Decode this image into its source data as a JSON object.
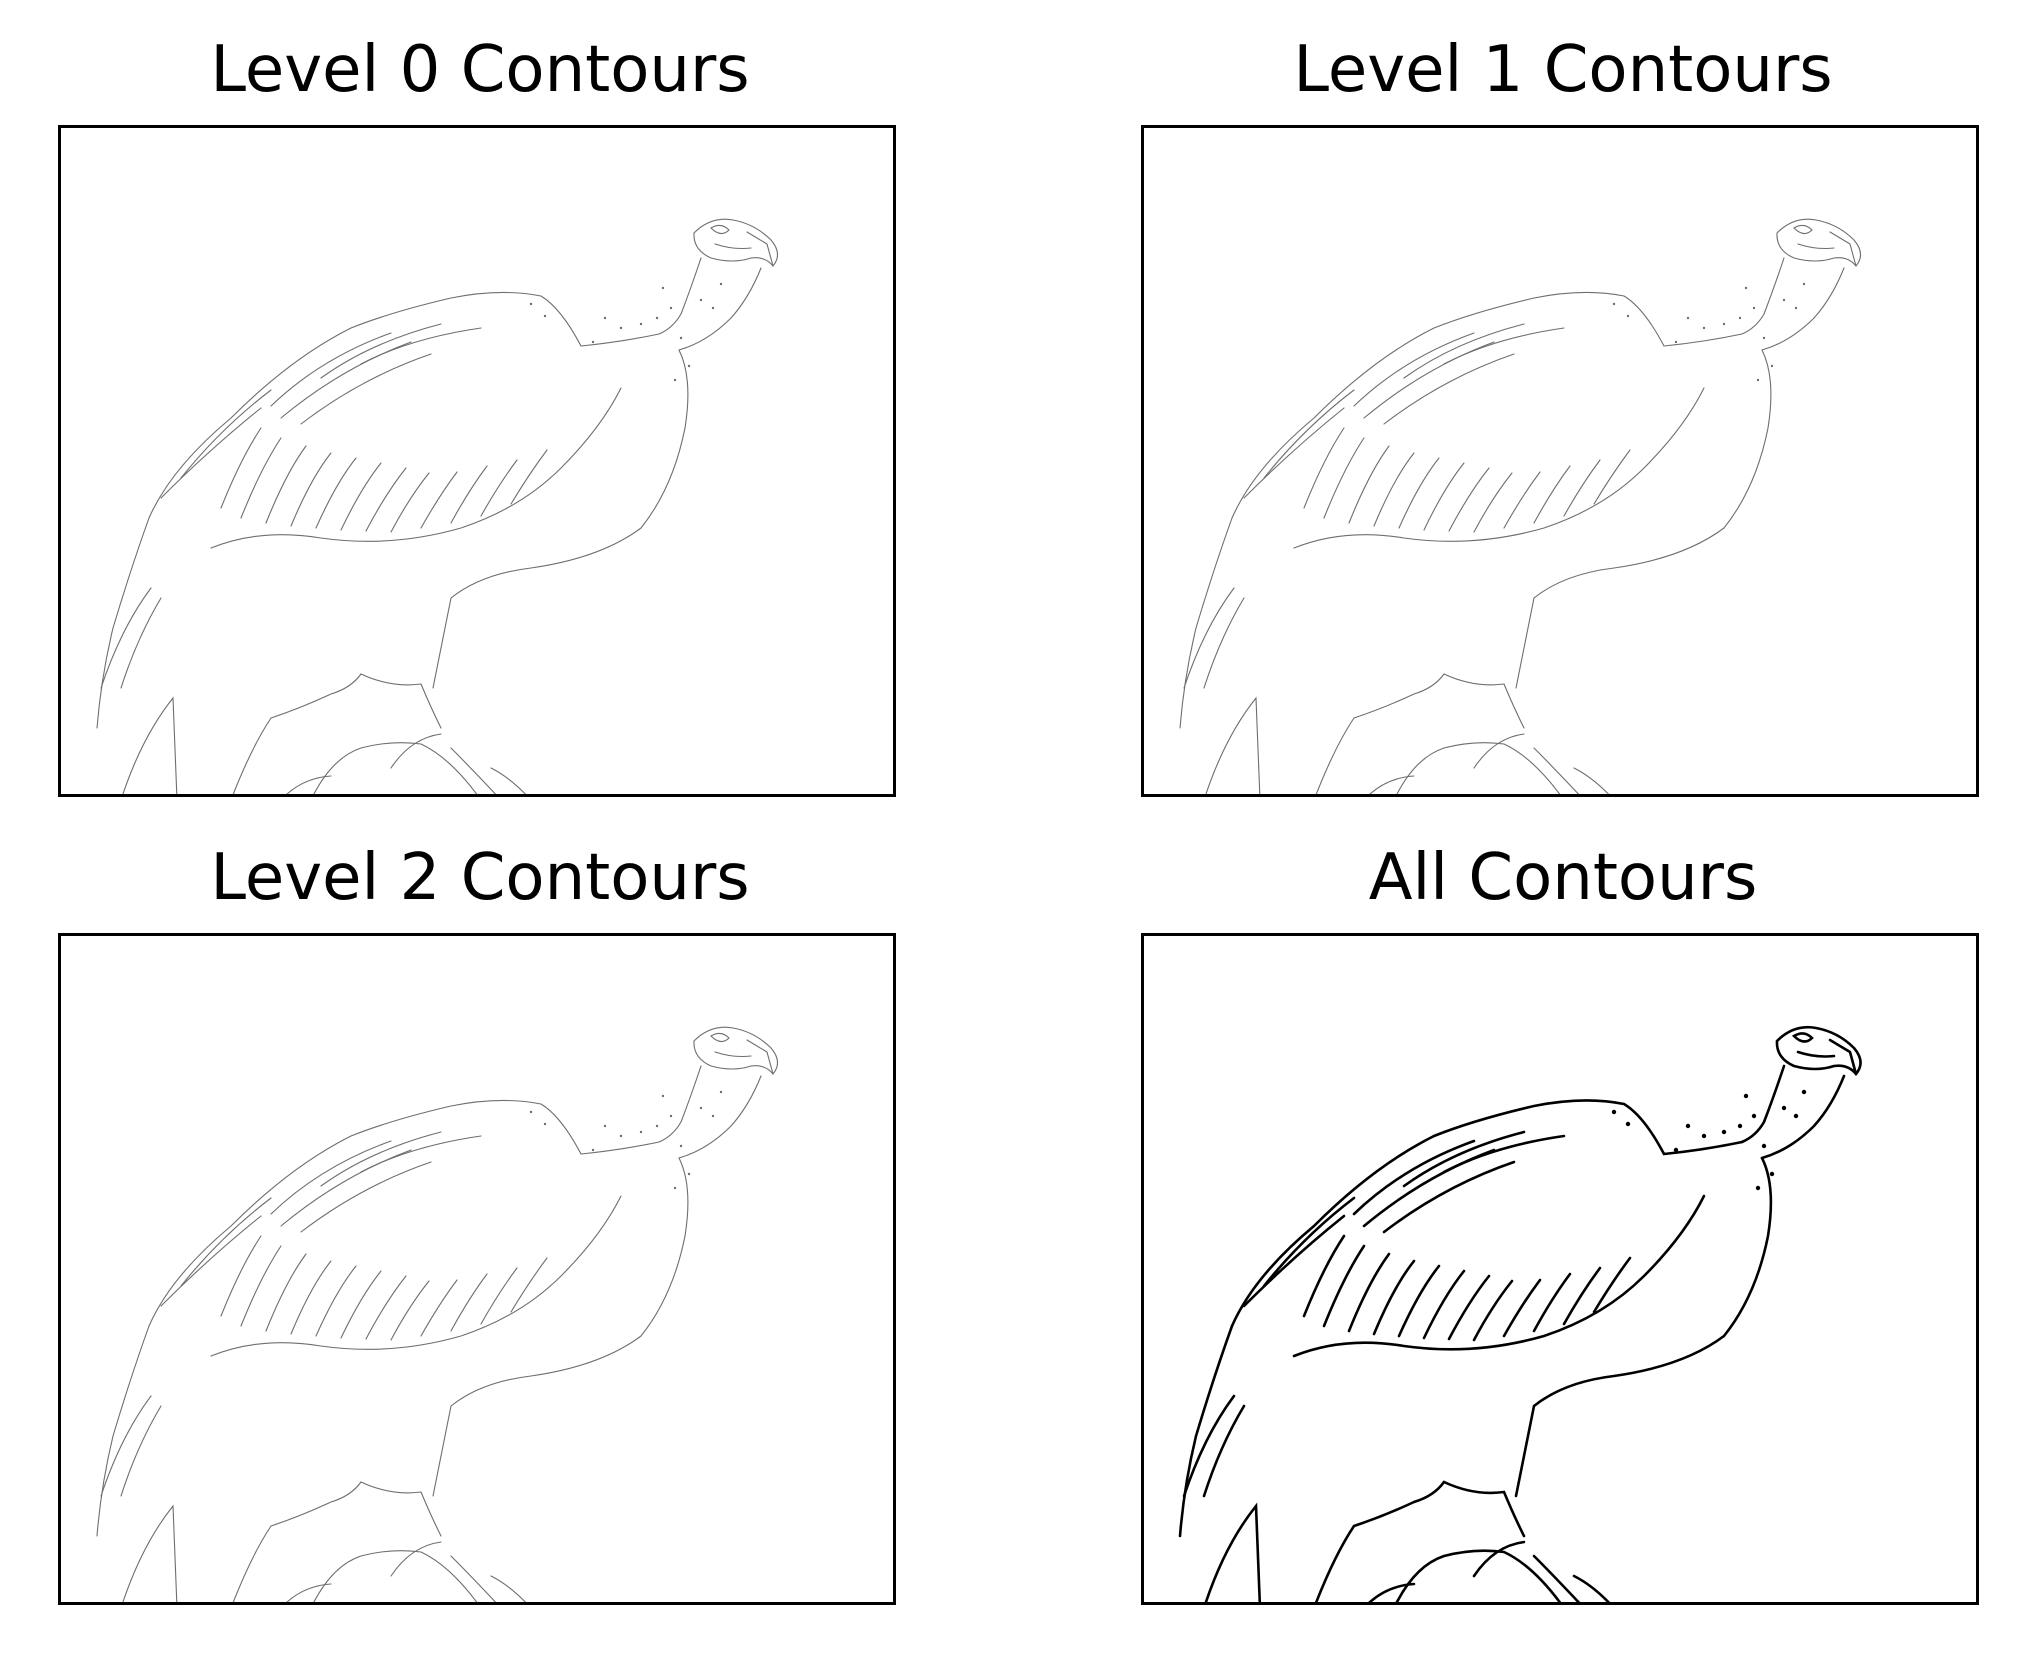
{
  "figure": {
    "panels": [
      {
        "title": "Level 0 Contours",
        "stroke": "#6e6e6e",
        "weight": "thin"
      },
      {
        "title": "Level 1 Contours",
        "stroke": "#6e6e6e",
        "weight": "thin"
      },
      {
        "title": "Level 2 Contours",
        "stroke": "#6e6e6e",
        "weight": "thin"
      },
      {
        "title": "All Contours",
        "stroke": "#000000",
        "weight": "bold"
      }
    ],
    "subject": "vulture-contour-drawing"
  }
}
